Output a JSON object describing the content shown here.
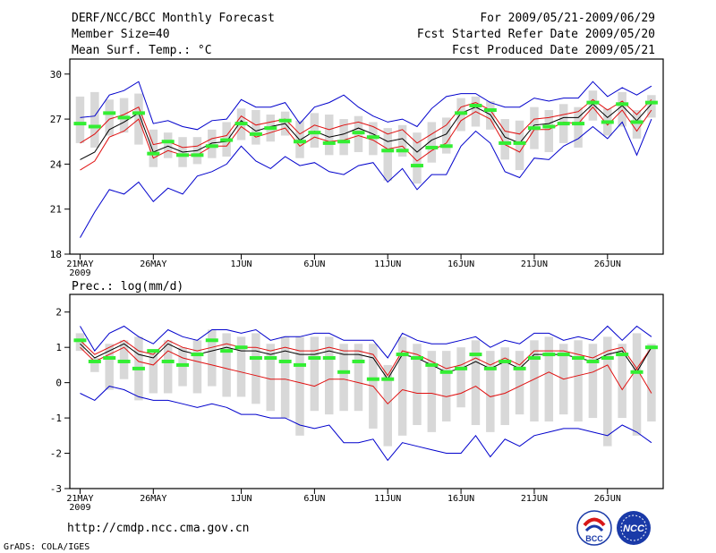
{
  "header": {
    "title": "DERF/NCC/BCC Monthly Forecast",
    "member_size": "Member Size=40",
    "variable": "Mean Surf. Temp.: °C",
    "period": "For 2009/05/21-2009/06/29",
    "started": "Fcst Started Refer Date 2009/05/20",
    "produced": "Fcst Produced Date 2009/05/21"
  },
  "footer": {
    "url": "http://cmdp.ncc.cma.gov.cn",
    "credit": "GrADS: COLA/IGES",
    "logo_bcc_text": "BCC",
    "logo_ncc_text": "NCC"
  },
  "colors": {
    "ensemble_mean": "#000000",
    "spread": "#e01010",
    "extreme": "#0000cc",
    "box": "#d8d8d8",
    "observed": "#33ee33"
  },
  "chart_data": [
    {
      "type": "line",
      "title": "Mean Surf. Temp.: °C",
      "x_ticks": [
        {
          "day": 1,
          "label": "21MAY"
        },
        {
          "day": 6,
          "label": "26MAY"
        },
        {
          "day": 12,
          "label": "1JUN"
        },
        {
          "day": 17,
          "label": "6JUN"
        },
        {
          "day": 22,
          "label": "11JUN"
        },
        {
          "day": 27,
          "label": "16JUN"
        },
        {
          "day": 32,
          "label": "21JUN"
        },
        {
          "day": 37,
          "label": "26JUN"
        }
      ],
      "year_label": "2009",
      "xlim": [
        0.3,
        40.8
      ],
      "ylim": [
        18,
        31
      ],
      "y_ticks": [
        18,
        21,
        24,
        27,
        30
      ],
      "series": [
        {
          "name": "ensemble mean",
          "values": [
            24.3,
            24.8,
            26.3,
            26.8,
            27.4,
            24.8,
            25.2,
            24.8,
            24.9,
            25.4,
            25.5,
            26.9,
            26.2,
            26.5,
            26.7,
            25.6,
            26.2,
            25.8,
            26.0,
            26.4,
            26.0,
            25.5,
            25.7,
            24.8,
            25.6,
            26.0,
            27.4,
            27.8,
            27.3,
            25.8,
            25.4,
            26.6,
            26.7,
            27.1,
            27.1,
            28.0,
            27.1,
            27.9,
            26.9,
            28.0
          ]
        },
        {
          "name": "upper spread",
          "values": [
            25.4,
            26.0,
            27.0,
            27.3,
            27.8,
            25.3,
            25.5,
            25.1,
            25.2,
            25.7,
            25.9,
            27.2,
            26.6,
            26.8,
            27.0,
            26.0,
            26.6,
            26.3,
            26.6,
            26.8,
            26.5,
            26.0,
            26.3,
            25.4,
            26.0,
            26.6,
            27.8,
            28.1,
            27.6,
            26.2,
            26.0,
            27.0,
            27.1,
            27.3,
            27.5,
            28.3,
            27.6,
            28.2,
            27.3,
            28.3
          ]
        },
        {
          "name": "lower spread",
          "values": [
            23.6,
            24.2,
            25.8,
            26.2,
            27.0,
            24.4,
            24.9,
            24.6,
            24.6,
            25.2,
            25.2,
            26.5,
            25.8,
            26.1,
            26.4,
            25.2,
            25.8,
            25.5,
            25.6,
            25.9,
            25.6,
            25.0,
            25.2,
            24.2,
            24.9,
            25.4,
            26.9,
            27.5,
            27.0,
            25.3,
            24.8,
            26.3,
            26.3,
            26.8,
            26.7,
            27.8,
            26.6,
            27.6,
            26.2,
            27.6
          ]
        },
        {
          "name": "maximum",
          "values": [
            27.1,
            27.2,
            28.6,
            28.9,
            29.5,
            26.7,
            26.9,
            26.5,
            26.3,
            26.9,
            27.0,
            28.3,
            27.8,
            27.8,
            28.1,
            26.7,
            27.8,
            28.1,
            28.6,
            27.8,
            27.2,
            26.8,
            27.0,
            26.5,
            27.7,
            28.5,
            28.7,
            28.7,
            28.1,
            27.8,
            27.8,
            28.4,
            28.2,
            28.4,
            28.4,
            29.5,
            28.5,
            29.1,
            28.6,
            29.2
          ]
        },
        {
          "name": "minimum",
          "values": [
            19.1,
            20.8,
            22.3,
            22.0,
            22.8,
            21.5,
            22.4,
            22.0,
            23.2,
            23.5,
            24.0,
            25.2,
            24.2,
            23.7,
            24.5,
            23.9,
            24.1,
            23.5,
            23.3,
            23.9,
            24.1,
            22.8,
            23.7,
            22.3,
            23.3,
            23.3,
            25.2,
            26.2,
            25.4,
            23.5,
            23.1,
            24.4,
            24.3,
            25.2,
            25.7,
            26.5,
            25.7,
            26.8,
            24.6,
            27.0
          ]
        },
        {
          "name": "observed",
          "values": [
            26.7,
            26.5,
            27.4,
            27.1,
            27.4,
            24.7,
            25.5,
            24.6,
            24.6,
            25.2,
            25.6,
            26.7,
            26.0,
            26.4,
            26.9,
            25.5,
            26.1,
            25.4,
            25.5,
            26.1,
            25.8,
            24.9,
            24.9,
            23.9,
            25.1,
            25.2,
            27.4,
            27.9,
            27.6,
            25.4,
            25.4,
            26.4,
            26.5,
            26.7,
            26.7,
            28.1,
            26.8,
            28.0,
            26.8,
            28.1
          ]
        }
      ],
      "boxes": {
        "high": [
          28.5,
          28.8,
          28.3,
          28.4,
          28.7,
          26.3,
          26.1,
          25.8,
          25.8,
          26.3,
          26.8,
          27.7,
          27.6,
          27.3,
          27.5,
          26.9,
          27.4,
          27.3,
          27.0,
          27.2,
          26.8,
          26.4,
          26.6,
          26.1,
          26.8,
          27.1,
          28.4,
          28.5,
          28.2,
          27.0,
          26.9,
          27.8,
          27.6,
          28.0,
          27.8,
          28.9,
          27.7,
          28.8,
          27.6,
          28.6
        ],
        "low": [
          25.4,
          25.1,
          25.9,
          26.1,
          25.3,
          23.8,
          24.4,
          23.8,
          24.0,
          24.4,
          24.5,
          25.6,
          25.3,
          25.5,
          25.9,
          24.4,
          25.1,
          24.6,
          24.6,
          24.8,
          24.6,
          22.9,
          24.5,
          22.7,
          24.1,
          24.7,
          26.2,
          26.5,
          26.3,
          24.3,
          23.6,
          25.0,
          24.8,
          25.4,
          25.1,
          26.9,
          25.9,
          26.5,
          25.7,
          27.1
        ]
      }
    },
    {
      "type": "line",
      "title": "Prec.: log(mm/d)",
      "x_ticks": [
        {
          "day": 1,
          "label": "21MAY"
        },
        {
          "day": 6,
          "label": "26MAY"
        },
        {
          "day": 12,
          "label": "1JUN"
        },
        {
          "day": 17,
          "label": "6JUN"
        },
        {
          "day": 22,
          "label": "11JUN"
        },
        {
          "day": 27,
          "label": "16JUN"
        },
        {
          "day": 32,
          "label": "21JUN"
        },
        {
          "day": 37,
          "label": "26JUN"
        }
      ],
      "year_label": "2009",
      "xlim": [
        0.3,
        40.8
      ],
      "ylim": [
        -3,
        2.5
      ],
      "y_ticks": [
        -3,
        -2,
        -1,
        0,
        1,
        2
      ],
      "series": [
        {
          "name": "ensemble mean",
          "values": [
            1.1,
            0.7,
            0.9,
            1.1,
            0.8,
            0.7,
            1.1,
            0.9,
            0.8,
            0.9,
            1.0,
            0.9,
            0.9,
            0.8,
            0.9,
            0.8,
            0.8,
            0.9,
            0.8,
            0.8,
            0.7,
            0.1,
            0.8,
            0.7,
            0.5,
            0.3,
            0.4,
            0.6,
            0.4,
            0.6,
            0.4,
            0.8,
            0.8,
            0.8,
            0.7,
            0.6,
            0.8,
            0.9,
            0.3,
            1.0
          ]
        },
        {
          "name": "upper spread",
          "values": [
            1.2,
            0.8,
            1.0,
            1.2,
            0.9,
            0.8,
            1.2,
            1.0,
            0.9,
            1.0,
            1.1,
            1.0,
            1.0,
            0.9,
            1.0,
            0.9,
            0.9,
            1.0,
            0.9,
            0.9,
            0.8,
            0.2,
            0.9,
            0.8,
            0.6,
            0.4,
            0.5,
            0.7,
            0.5,
            0.7,
            0.5,
            0.9,
            0.9,
            0.9,
            0.8,
            0.7,
            0.9,
            1.0,
            0.4,
            1.0
          ]
        },
        {
          "name": "lower spread",
          "values": [
            1.0,
            0.6,
            0.8,
            1.0,
            0.6,
            0.5,
            0.9,
            0.7,
            0.6,
            0.5,
            0.4,
            0.3,
            0.2,
            0.1,
            0.1,
            0.0,
            -0.1,
            0.1,
            0.1,
            0.0,
            -0.1,
            -0.6,
            -0.2,
            -0.3,
            -0.3,
            -0.4,
            -0.3,
            -0.1,
            -0.4,
            -0.3,
            -0.1,
            0.1,
            0.3,
            0.1,
            0.2,
            0.3,
            0.5,
            -0.2,
            0.4,
            -0.3
          ]
        },
        {
          "name": "maximum",
          "values": [
            1.6,
            0.9,
            1.4,
            1.6,
            1.3,
            1.1,
            1.5,
            1.3,
            1.2,
            1.5,
            1.5,
            1.4,
            1.5,
            1.2,
            1.3,
            1.3,
            1.4,
            1.4,
            1.2,
            1.2,
            1.2,
            0.7,
            1.4,
            1.2,
            1.1,
            1.1,
            1.2,
            1.3,
            1.0,
            1.2,
            1.1,
            1.4,
            1.4,
            1.2,
            1.3,
            1.2,
            1.6,
            1.2,
            1.6,
            1.3
          ]
        },
        {
          "name": "minimum",
          "values": [
            -0.3,
            -0.5,
            -0.1,
            -0.2,
            -0.4,
            -0.5,
            -0.5,
            -0.6,
            -0.7,
            -0.6,
            -0.7,
            -0.9,
            -0.9,
            -1.0,
            -1.0,
            -1.2,
            -1.3,
            -1.2,
            -1.7,
            -1.7,
            -1.6,
            -2.2,
            -1.7,
            -1.8,
            -1.9,
            -2.0,
            -2.0,
            -1.5,
            -2.1,
            -1.6,
            -1.8,
            -1.5,
            -1.4,
            -1.3,
            -1.3,
            -1.4,
            -1.5,
            -1.2,
            -1.4,
            -1.7
          ]
        },
        {
          "name": "observed",
          "values": [
            1.2,
            0.6,
            0.7,
            0.6,
            0.4,
            0.9,
            0.6,
            0.5,
            0.8,
            1.2,
            0.9,
            1.0,
            0.7,
            0.7,
            0.6,
            0.5,
            0.7,
            0.7,
            0.3,
            0.6,
            0.1,
            0.1,
            0.8,
            0.7,
            0.5,
            0.3,
            0.4,
            0.8,
            0.4,
            0.6,
            0.4,
            0.7,
            0.8,
            0.8,
            0.7,
            0.6,
            0.7,
            0.8,
            0.3,
            1.0
          ]
        }
      ],
      "boxes": {
        "high": [
          1.4,
          0.7,
          1.1,
          1.2,
          1.3,
          0.9,
          1.2,
          1.0,
          1.2,
          1.5,
          1.4,
          1.3,
          1.4,
          1.1,
          1.3,
          1.3,
          1.3,
          1.3,
          1.1,
          1.1,
          1.1,
          0.5,
          1.3,
          1.1,
          0.9,
          0.9,
          1.0,
          1.2,
          0.9,
          1.0,
          0.9,
          1.2,
          1.3,
          1.1,
          1.2,
          1.1,
          1.3,
          1.1,
          1.4,
          1.1
        ],
        "low": [
          0.9,
          0.3,
          -0.2,
          0.1,
          -0.5,
          -0.3,
          -0.3,
          -0.1,
          -0.3,
          -0.1,
          -0.4,
          -0.4,
          -0.6,
          -0.8,
          -1.0,
          -1.5,
          -0.8,
          -0.9,
          -0.8,
          -0.8,
          -1.3,
          -1.8,
          -1.5,
          -1.2,
          -1.4,
          -1.1,
          -0.7,
          -1.2,
          -1.4,
          -1.2,
          -0.9,
          -1.1,
          -1.1,
          -0.9,
          -1.1,
          -1.0,
          -1.8,
          -1.0,
          -1.5,
          -1.1
        ]
      }
    }
  ]
}
